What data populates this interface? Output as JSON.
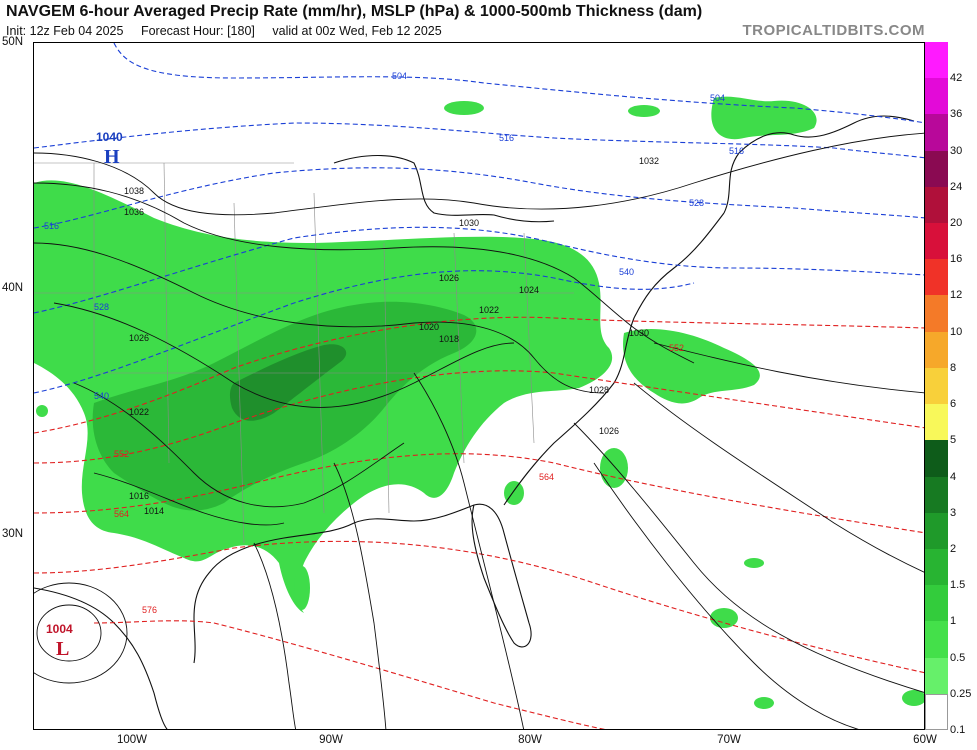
{
  "header": {
    "title": "NAVGEM 6-hour Averaged Precip Rate (mm/hr), MSLP (hPa) & 1000-500mb Thickness (dam)",
    "init": "Init: 12z Feb 04 2025",
    "forecast_hour": "Forecast Hour: [180]",
    "valid": "valid at 00z Wed, Feb 12 2025",
    "brand": "TROPICALTIDBITS.COM"
  },
  "axes": {
    "lat_labels": [
      "50N",
      "40N",
      "30N"
    ],
    "lon_labels": [
      "100W",
      "90W",
      "80W",
      "70W",
      "60W"
    ]
  },
  "pressure_centers": [
    {
      "type": "H",
      "value": "1040",
      "color": "#1a3fbf"
    },
    {
      "type": "L",
      "value": "1004",
      "color": "#c0142a"
    }
  ],
  "isobar_labels": [
    "1038",
    "1036",
    "1030",
    "1032",
    "1026",
    "1024",
    "1022",
    "1020",
    "1018",
    "1026",
    "1022",
    "1016",
    "1014",
    "1028",
    "1026",
    "1030"
  ],
  "thickness_labels_blue": [
    "504",
    "516",
    "504",
    "516",
    "528",
    "516",
    "528",
    "540",
    "540"
  ],
  "thickness_labels_red": [
    "552",
    "552",
    "564",
    "564",
    "576"
  ],
  "colorbar": {
    "labels": [
      "42",
      "36",
      "30",
      "24",
      "20",
      "16",
      "12",
      "10",
      "8",
      "6",
      "5",
      "4",
      "3",
      "2",
      "1.5",
      "1",
      "0.5",
      "0.25",
      "0.1"
    ],
    "colors": [
      "#ff1aff",
      "#e30ad8",
      "#b8089a",
      "#8a0a52",
      "#b0103a",
      "#d8103a",
      "#f03228",
      "#f47a28",
      "#f6a82a",
      "#f8d03a",
      "#f8f85a",
      "#0e5c1a",
      "#177a22",
      "#1f9a2a",
      "#28b432",
      "#33cc3c",
      "#44e04a",
      "#66f06a",
      "#ffffff"
    ]
  },
  "colors": {
    "precip_light": "#3fdc4a",
    "precip_mid": "#2bb838",
    "precip_heavy": "#1f8f2c",
    "thickness_cold": "#1a3fd6",
    "thickness_warm": "#e02020",
    "isobar": "#111111",
    "borders": "#8a8a8a"
  }
}
